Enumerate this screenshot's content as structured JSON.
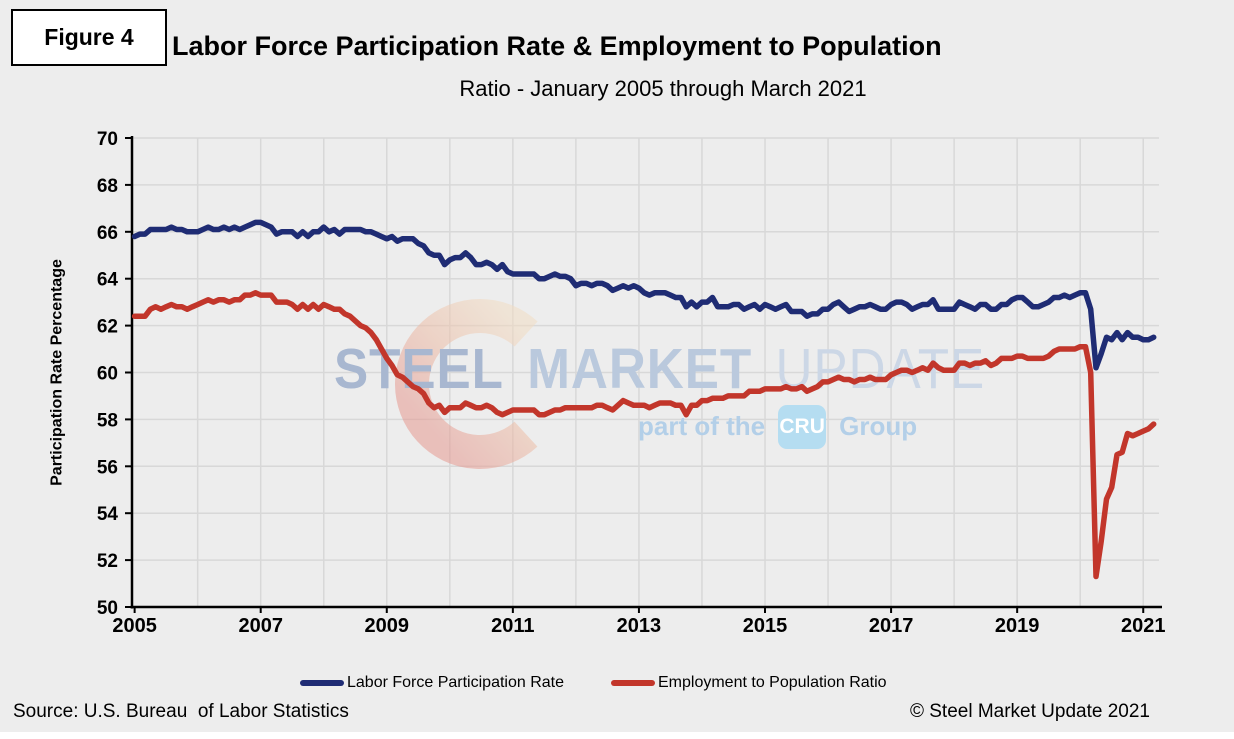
{
  "figure_label": "Figure 4",
  "title": "Labor Force Participation Rate & Employment to Population",
  "subtitle": "Ratio - January 2005 through March 2021",
  "footer": {
    "source": "Source: U.S. Bureau  of Labor Statistics",
    "copyright": "© Steel Market Update 2021"
  },
  "watermark": {
    "word1": "STEEL",
    "word2": "MARKET",
    "word3": "UPDATE",
    "tagline": "part of the",
    "badge": "CRU",
    "group": "Group"
  },
  "colors": {
    "lfpr_line": "#1f2c74",
    "epop_line": "#c2362b",
    "background": "#ededed",
    "gridline": "#d8d8d8",
    "axis": "#000000"
  },
  "chart_data": {
    "type": "line",
    "title": "Labor Force Participation Rate & Employment to Population",
    "subtitle": "Ratio - January 2005 through March 2021",
    "xlabel": "",
    "ylabel": "Participation Rate Percentage",
    "ylim": [
      50,
      70
    ],
    "ytick_step": 2,
    "yticks": [
      50,
      52,
      54,
      56,
      58,
      60,
      62,
      64,
      66,
      68,
      70
    ],
    "xticks": [
      2005,
      2007,
      2009,
      2011,
      2013,
      2015,
      2017,
      2019,
      2021
    ],
    "x_frequency": "monthly",
    "x_start": "2005-01",
    "x_end": "2021-03",
    "grid": true,
    "legend_position": "bottom",
    "series": [
      {
        "name": "Labor Force Participation Rate",
        "color": "#1f2c74",
        "values": [
          65.8,
          65.9,
          65.9,
          66.1,
          66.1,
          66.1,
          66.1,
          66.2,
          66.1,
          66.1,
          66.0,
          66.0,
          66.0,
          66.1,
          66.2,
          66.1,
          66.1,
          66.2,
          66.1,
          66.2,
          66.1,
          66.2,
          66.3,
          66.4,
          66.4,
          66.3,
          66.2,
          65.9,
          66.0,
          66.0,
          66.0,
          65.8,
          66.0,
          65.8,
          66.0,
          66.0,
          66.2,
          66.0,
          66.1,
          65.9,
          66.1,
          66.1,
          66.1,
          66.1,
          66.0,
          66.0,
          65.9,
          65.8,
          65.7,
          65.8,
          65.6,
          65.7,
          65.7,
          65.7,
          65.5,
          65.4,
          65.1,
          65.0,
          65.0,
          64.6,
          64.8,
          64.9,
          64.9,
          65.1,
          64.9,
          64.6,
          64.6,
          64.7,
          64.6,
          64.4,
          64.6,
          64.3,
          64.2,
          64.2,
          64.2,
          64.2,
          64.2,
          64.0,
          64.0,
          64.1,
          64.2,
          64.1,
          64.1,
          64.0,
          63.7,
          63.8,
          63.8,
          63.7,
          63.8,
          63.8,
          63.7,
          63.5,
          63.6,
          63.7,
          63.6,
          63.7,
          63.6,
          63.4,
          63.3,
          63.4,
          63.4,
          63.4,
          63.3,
          63.2,
          63.2,
          62.8,
          63.0,
          62.8,
          63.0,
          63.0,
          63.2,
          62.8,
          62.8,
          62.8,
          62.9,
          62.9,
          62.7,
          62.8,
          62.9,
          62.7,
          62.9,
          62.8,
          62.7,
          62.8,
          62.9,
          62.6,
          62.6,
          62.6,
          62.4,
          62.5,
          62.5,
          62.7,
          62.7,
          62.9,
          63.0,
          62.8,
          62.6,
          62.7,
          62.8,
          62.8,
          62.9,
          62.8,
          62.7,
          62.7,
          62.9,
          63.0,
          63.0,
          62.9,
          62.7,
          62.8,
          62.9,
          62.9,
          63.1,
          62.7,
          62.7,
          62.7,
          62.7,
          63.0,
          62.9,
          62.8,
          62.7,
          62.9,
          62.9,
          62.7,
          62.7,
          62.9,
          62.9,
          63.1,
          63.2,
          63.2,
          63.0,
          62.8,
          62.8,
          62.9,
          63.0,
          63.2,
          63.2,
          63.3,
          63.2,
          63.3,
          63.4,
          63.4,
          62.7,
          60.2,
          60.8,
          61.5,
          61.4,
          61.7,
          61.4,
          61.7,
          61.5,
          61.5,
          61.4,
          61.4,
          61.5
        ]
      },
      {
        "name": "Employment to Population Ratio",
        "color": "#c2362b",
        "values": [
          62.4,
          62.4,
          62.4,
          62.7,
          62.8,
          62.7,
          62.8,
          62.9,
          62.8,
          62.8,
          62.7,
          62.8,
          62.9,
          63.0,
          63.1,
          63.0,
          63.1,
          63.1,
          63.0,
          63.1,
          63.1,
          63.3,
          63.3,
          63.4,
          63.3,
          63.3,
          63.3,
          63.0,
          63.0,
          63.0,
          62.9,
          62.7,
          62.9,
          62.7,
          62.9,
          62.7,
          62.9,
          62.8,
          62.7,
          62.7,
          62.5,
          62.4,
          62.2,
          62.0,
          61.9,
          61.7,
          61.4,
          61.0,
          60.6,
          60.3,
          59.9,
          59.8,
          59.6,
          59.4,
          59.3,
          59.1,
          58.7,
          58.5,
          58.6,
          58.3,
          58.5,
          58.5,
          58.5,
          58.7,
          58.6,
          58.5,
          58.5,
          58.6,
          58.5,
          58.3,
          58.2,
          58.3,
          58.4,
          58.4,
          58.4,
          58.4,
          58.4,
          58.2,
          58.2,
          58.3,
          58.4,
          58.4,
          58.5,
          58.5,
          58.5,
          58.5,
          58.5,
          58.5,
          58.6,
          58.6,
          58.5,
          58.4,
          58.6,
          58.8,
          58.7,
          58.6,
          58.6,
          58.6,
          58.5,
          58.6,
          58.7,
          58.7,
          58.7,
          58.6,
          58.6,
          58.2,
          58.6,
          58.6,
          58.8,
          58.8,
          58.9,
          58.9,
          58.9,
          59.0,
          59.0,
          59.0,
          59.0,
          59.2,
          59.2,
          59.2,
          59.3,
          59.3,
          59.3,
          59.3,
          59.4,
          59.3,
          59.3,
          59.4,
          59.2,
          59.3,
          59.4,
          59.6,
          59.6,
          59.7,
          59.8,
          59.7,
          59.7,
          59.6,
          59.7,
          59.7,
          59.8,
          59.7,
          59.7,
          59.7,
          59.9,
          60.0,
          60.1,
          60.1,
          60.0,
          60.1,
          60.2,
          60.1,
          60.4,
          60.2,
          60.1,
          60.1,
          60.1,
          60.4,
          60.4,
          60.3,
          60.4,
          60.4,
          60.5,
          60.3,
          60.4,
          60.6,
          60.6,
          60.6,
          60.7,
          60.7,
          60.6,
          60.6,
          60.6,
          60.6,
          60.7,
          60.9,
          61.0,
          61.0,
          61.0,
          61.0,
          61.1,
          61.1,
          60.0,
          51.3,
          52.8,
          54.6,
          55.1,
          56.5,
          56.6,
          57.4,
          57.3,
          57.4,
          57.5,
          57.6,
          57.8
        ]
      }
    ]
  }
}
